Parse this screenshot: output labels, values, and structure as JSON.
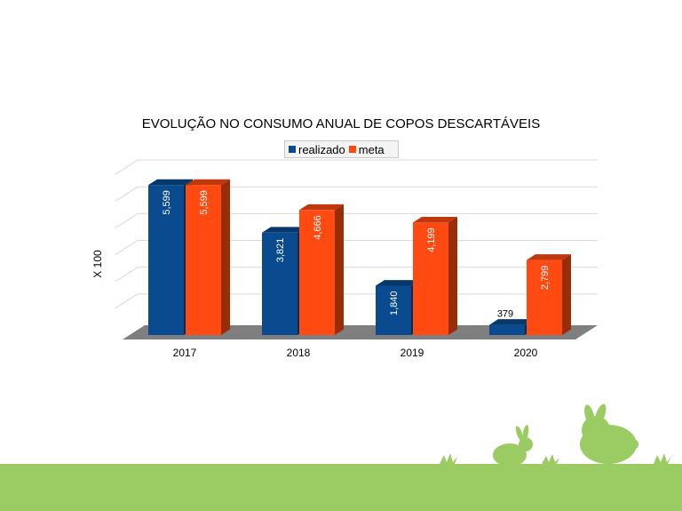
{
  "chart_data": {
    "type": "bar",
    "title": "EVOLUÇÃO NO CONSUMO ANUAL DE COPOS DESCARTÁVEIS",
    "ylabel": "X 100",
    "xlabel": "",
    "categories": [
      "2017",
      "2018",
      "2019",
      "2020"
    ],
    "series": [
      {
        "name": "realizado",
        "values": [
          5599,
          3821,
          1840,
          379
        ],
        "labels": [
          "5,599",
          "3,821",
          "1,840",
          "379"
        ],
        "color": "#0a4a8f"
      },
      {
        "name": "meta",
        "values": [
          5599,
          4666,
          4199,
          2799
        ],
        "labels": [
          "5,599",
          "4,666",
          "4,199",
          "2,799"
        ],
        "color": "#ff4a12"
      }
    ],
    "ylim": [
      0,
      6300
    ],
    "grid": true,
    "legend_position": "top",
    "style": "3d-bars"
  },
  "colors": {
    "ground": "#9bcb63",
    "bunny": "#9bcb63",
    "floor": "#7f7f7f"
  }
}
